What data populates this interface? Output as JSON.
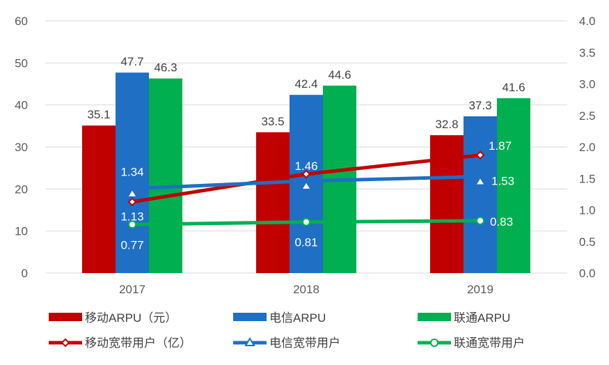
{
  "chart_data": {
    "type": "bar+line",
    "categories": [
      "2017",
      "2018",
      "2019"
    ],
    "left_axis": {
      "ylim": [
        0,
        60
      ],
      "ticks": [
        "0",
        "10",
        "20",
        "30",
        "40",
        "50",
        "60"
      ]
    },
    "right_axis": {
      "ylim": [
        0,
        4.0
      ],
      "ticks": [
        "0.0",
        "0.5",
        "1.0",
        "1.5",
        "2.0",
        "2.5",
        "3.0",
        "3.5",
        "4.0"
      ]
    },
    "grid": true,
    "legend_position": "bottom",
    "bar_series": [
      {
        "name": "移动ARPU（元）",
        "color": "#C00000",
        "values": [
          35.1,
          33.5,
          32.8
        ],
        "labels": [
          "35.1",
          "33.5",
          "32.8"
        ]
      },
      {
        "name": "电信ARPU",
        "color": "#1F6FC5",
        "values": [
          47.7,
          42.4,
          37.3
        ],
        "labels": [
          "47.7",
          "42.4",
          "37.3"
        ]
      },
      {
        "name": "联通ARPU",
        "color": "#00B050",
        "values": [
          46.3,
          44.6,
          41.6
        ],
        "labels": [
          "46.3",
          "44.6",
          "41.6"
        ]
      }
    ],
    "line_series": [
      {
        "name": "移动宽带用户（亿）",
        "color": "#C00000",
        "marker": "diamond",
        "values": [
          1.13,
          1.57,
          1.87
        ],
        "labels": [
          "1.13",
          null,
          "1.87"
        ]
      },
      {
        "name": "电信宽带用户",
        "color": "#1F6FC5",
        "marker": "triangle",
        "values": [
          1.34,
          1.46,
          1.53
        ],
        "labels": [
          "1.34",
          "1.46",
          "1.53"
        ]
      },
      {
        "name": "联通宽带用户",
        "color": "#00B050",
        "marker": "circle",
        "values": [
          0.77,
          0.81,
          0.83
        ],
        "labels": [
          "0.77",
          "0.81",
          "0.83"
        ]
      }
    ]
  }
}
